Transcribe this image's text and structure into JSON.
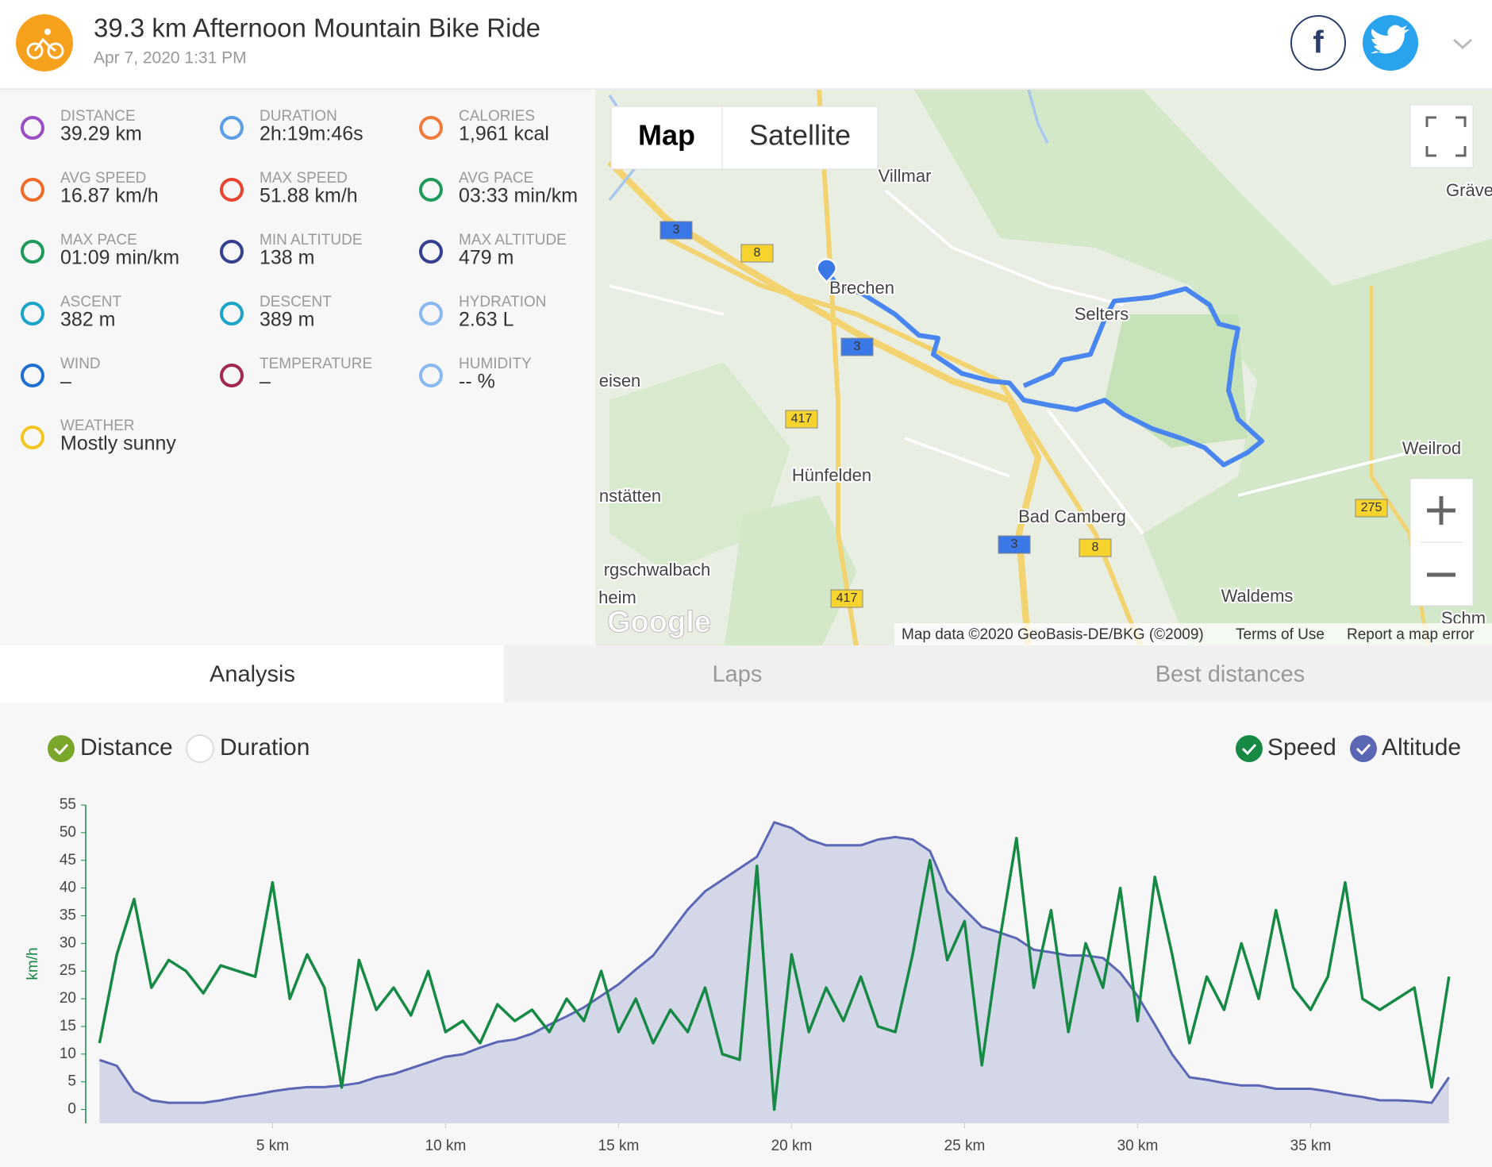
{
  "header": {
    "title": "39.3 km Afternoon Mountain Bike Ride",
    "date": "Apr 7, 2020 1:31 PM"
  },
  "stats": [
    {
      "label": "DISTANCE",
      "value": "39.29 km"
    },
    {
      "label": "DURATION",
      "value": "2h:19m:46s"
    },
    {
      "label": "CALORIES",
      "value": "1,961 kcal"
    },
    {
      "label": "AVG SPEED",
      "value": "16.87 km/h"
    },
    {
      "label": "MAX SPEED",
      "value": "51.88 km/h"
    },
    {
      "label": "AVG PACE",
      "value": "03:33 min/km"
    },
    {
      "label": "MAX PACE",
      "value": "01:09 min/km"
    },
    {
      "label": "MIN ALTITUDE",
      "value": "138 m"
    },
    {
      "label": "MAX ALTITUDE",
      "value": "479 m"
    },
    {
      "label": "ASCENT",
      "value": "382 m"
    },
    {
      "label": "DESCENT",
      "value": "389 m"
    },
    {
      "label": "HYDRATION",
      "value": "2.63 L"
    },
    {
      "label": "WIND",
      "value": "–"
    },
    {
      "label": "TEMPERATURE",
      "value": "–"
    },
    {
      "label": "HUMIDITY",
      "value": "-- %"
    },
    {
      "label": "WEATHER",
      "value": "Mostly sunny"
    }
  ],
  "map": {
    "buttons": [
      "Map",
      "Satellite"
    ],
    "places": [
      "Villmar",
      "Brechen",
      "Selters",
      "Hünfelden",
      "Bad Camberg",
      "Weilrod",
      "Waldems",
      "Gräve",
      "eisen",
      "nstätten",
      "rgschwalbach",
      "heim",
      "Schm"
    ],
    "roads": [
      "3",
      "3",
      "3",
      "8",
      "8",
      "417",
      "417",
      "275"
    ],
    "logo": "Google",
    "attribution": "Map data ©2020 GeoBasis-DE/BKG (©2009)",
    "terms": "Terms of Use",
    "report": "Report a map error"
  },
  "tabs": [
    "Analysis",
    "Laps",
    "Best distances"
  ],
  "x_modes": [
    "Distance",
    "Duration"
  ],
  "chart_data": {
    "type": "line",
    "y_label": "km/h",
    "x": [
      0,
      0.5,
      1,
      1.5,
      2,
      2.5,
      3,
      3.5,
      4,
      4.5,
      5,
      5.5,
      6,
      6.5,
      7,
      7.5,
      8,
      8.5,
      9,
      9.5,
      10,
      10.5,
      11,
      11.5,
      12,
      12.5,
      13,
      13.5,
      14,
      14.5,
      15,
      15.5,
      16,
      16.5,
      17,
      17.5,
      18,
      18.5,
      19,
      19.5,
      20,
      20.5,
      21,
      21.5,
      22,
      22.5,
      23,
      23.5,
      24,
      24.5,
      25,
      25.5,
      26,
      26.5,
      27,
      27.5,
      28,
      28.5,
      29,
      29.5,
      30,
      30.5,
      31,
      31.5,
      32,
      32.5,
      33,
      33.5,
      34,
      34.5,
      35,
      35.5,
      36,
      36.5,
      37,
      37.5,
      38,
      38.5,
      39
    ],
    "series": [
      {
        "name": "Speed",
        "color": "#168a45",
        "values": [
          12,
          28,
          38,
          22,
          27,
          25,
          21,
          26,
          25,
          24,
          41,
          20,
          28,
          22,
          4,
          27,
          18,
          22,
          17,
          25,
          14,
          16,
          12,
          19,
          16,
          18,
          14,
          20,
          16,
          25,
          14,
          20,
          12,
          18,
          14,
          22,
          10,
          9,
          44,
          0,
          28,
          14,
          22,
          16,
          24,
          15,
          14,
          28,
          45,
          27,
          34,
          8,
          30,
          49,
          22,
          36,
          14,
          30,
          22,
          40,
          16,
          42,
          28,
          12,
          24,
          18,
          30,
          20,
          36,
          22,
          18,
          24,
          41,
          20,
          18,
          20,
          22,
          4,
          24
        ]
      },
      {
        "name": "Altitude",
        "color": "#5b67b5",
        "axis": "y2",
        "values": [
          190,
          183,
          152,
          141,
          138,
          138,
          138,
          141,
          145,
          148,
          152,
          155,
          157,
          157,
          159,
          162,
          169,
          173,
          180,
          187,
          194,
          197,
          205,
          212,
          215,
          222,
          233,
          243,
          254,
          268,
          282,
          300,
          317,
          345,
          373,
          395,
          409,
          423,
          437,
          479,
          472,
          458,
          451,
          451,
          451,
          458,
          461,
          458,
          444,
          395,
          373,
          352,
          345,
          338,
          324,
          321,
          317,
          317,
          314,
          296,
          268,
          233,
          197,
          169,
          166,
          162,
          159,
          159,
          155,
          155,
          155,
          152,
          148,
          145,
          141,
          141,
          140,
          138,
          169
        ]
      }
    ],
    "xlim": [
      -0.4,
      39.6
    ],
    "xticks": [
      {
        "value": 5,
        "label": "5 km"
      },
      {
        "value": 10,
        "label": "10 km"
      },
      {
        "value": 15,
        "label": "15 km"
      },
      {
        "value": 20,
        "label": "20 km"
      },
      {
        "value": 25,
        "label": "25 km"
      },
      {
        "value": 30,
        "label": "30 km"
      },
      {
        "value": 35,
        "label": "35 km"
      }
    ],
    "ylim": [
      -2.5,
      55
    ],
    "yticks": [
      0,
      5,
      10,
      15,
      20,
      25,
      30,
      35,
      40,
      45,
      50,
      55
    ],
    "y2lim": [
      113,
      500
    ],
    "grid": false
  }
}
